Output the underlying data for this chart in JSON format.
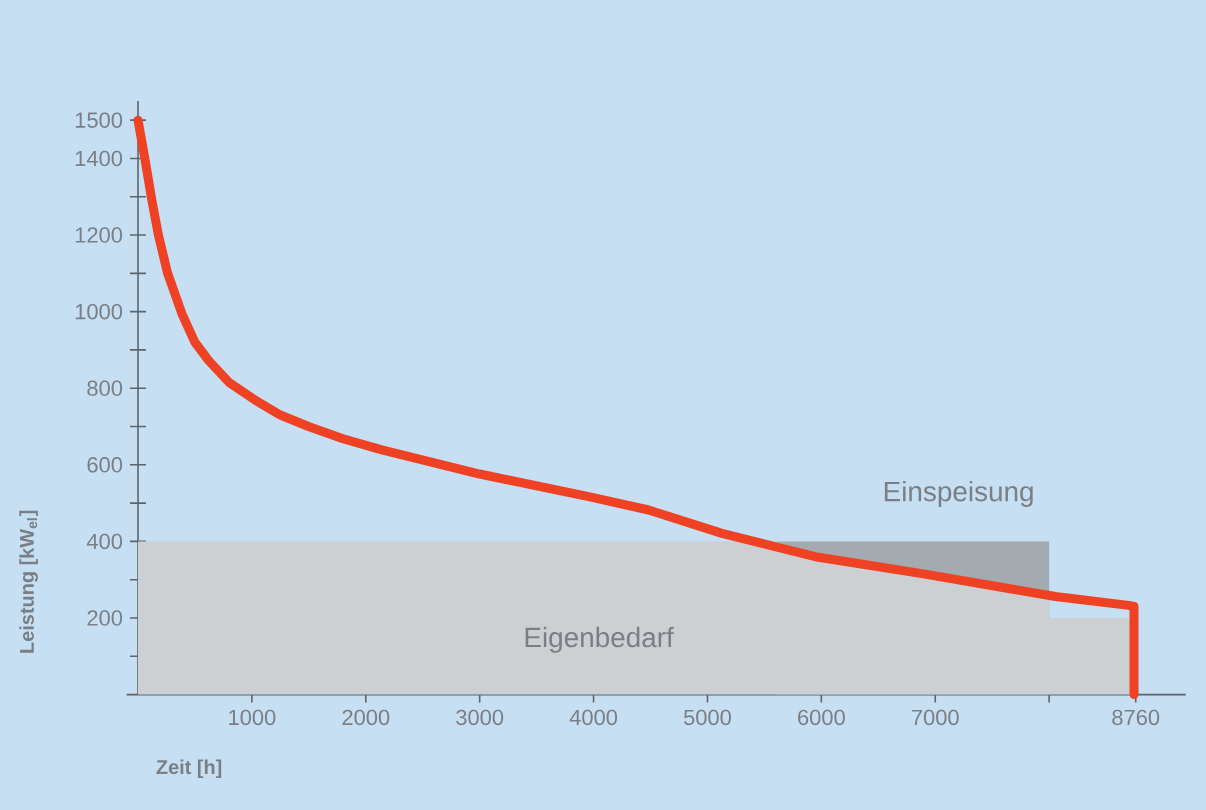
{
  "chart_data": {
    "type": "area",
    "xlabel": "Zeit [h]",
    "ylabel": "Leistung [kW$_{el}$]",
    "xlim": [
      -100,
      9200
    ],
    "ylim": [
      0,
      1550
    ],
    "xticks": [
      1000,
      2000,
      3000,
      4000,
      5000,
      6000,
      7000,
      {
        "value": 8000,
        "label": null
      },
      8760
    ],
    "yticks": [
      {
        "value": 100,
        "label": null
      },
      200,
      {
        "value": 300,
        "label": null
      },
      400,
      {
        "value": 500,
        "label": null
      },
      600,
      {
        "value": 700,
        "label": null
      },
      800,
      {
        "value": 900,
        "label": null
      },
      1000,
      {
        "value": 1100,
        "label": null
      },
      1200,
      {
        "value": 1300,
        "label": null
      },
      1400,
      1500
    ],
    "series": [
      {
        "name": "Einspeisung",
        "color": "#a3aab0",
        "x": [
          5600,
          8000
        ],
        "values": [
          400,
          400
        ]
      },
      {
        "name": "Eigenbedarf",
        "color": "#cdd0d3",
        "x": [
          0,
          5600,
          5946,
          6884,
          8000,
          8000,
          8760
        ],
        "values": [
          400,
          400,
          360,
          316,
          260,
          200,
          200
        ]
      },
      {
        "type": "line",
        "color": "#ef4123",
        "x": [
          0,
          60,
          121,
          179,
          260,
          385,
          500,
          618,
          800,
          1028,
          1250,
          1497,
          1800,
          2141,
          3000,
          3957,
          4483,
          5127,
          5946,
          6884,
          8054,
          8698,
          8745,
          8745
        ],
        "values": [
          1500,
          1400,
          1292,
          1200,
          1100,
          995,
          920,
          873,
          815,
          769,
          730,
          700,
          668,
          639,
          576,
          517,
          482,
          421,
          360,
          316,
          256,
          233,
          230,
          0
        ]
      }
    ]
  }
}
